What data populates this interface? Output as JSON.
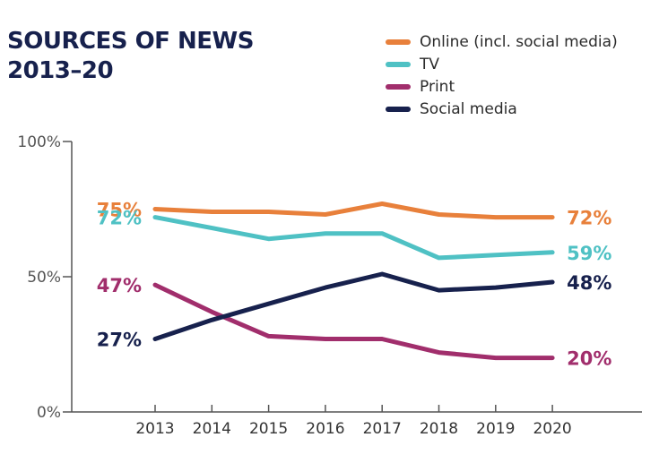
{
  "chart_data": {
    "type": "line",
    "title": [
      "SOURCES OF NEWS",
      "2013–20"
    ],
    "x": [
      "2013",
      "2014",
      "2015",
      "2016",
      "2017",
      "2018",
      "2019",
      "2020"
    ],
    "ylim": [
      0,
      100
    ],
    "yticks": [
      "0%",
      "50%",
      "100%"
    ],
    "legend_position": "top-right",
    "series": [
      {
        "name": "Online (incl. social media)",
        "color": "#e8803b",
        "values": [
          75,
          74,
          74,
          73,
          77,
          73,
          72,
          72
        ],
        "start_label": "75%",
        "end_label": "72%"
      },
      {
        "name": "TV",
        "color": "#4fc1c4",
        "values": [
          72,
          68,
          64,
          66,
          66,
          57,
          58,
          59
        ],
        "start_label": "72%",
        "end_label": "59%"
      },
      {
        "name": "Print",
        "color": "#a12e6c",
        "values": [
          47,
          37,
          28,
          27,
          27,
          22,
          20,
          20
        ],
        "start_label": "47%",
        "end_label": "20%"
      },
      {
        "name": "Social media",
        "color": "#17214d",
        "values": [
          27,
          34,
          40,
          46,
          51,
          45,
          46,
          48
        ],
        "start_label": "27%",
        "end_label": "48%"
      }
    ]
  }
}
